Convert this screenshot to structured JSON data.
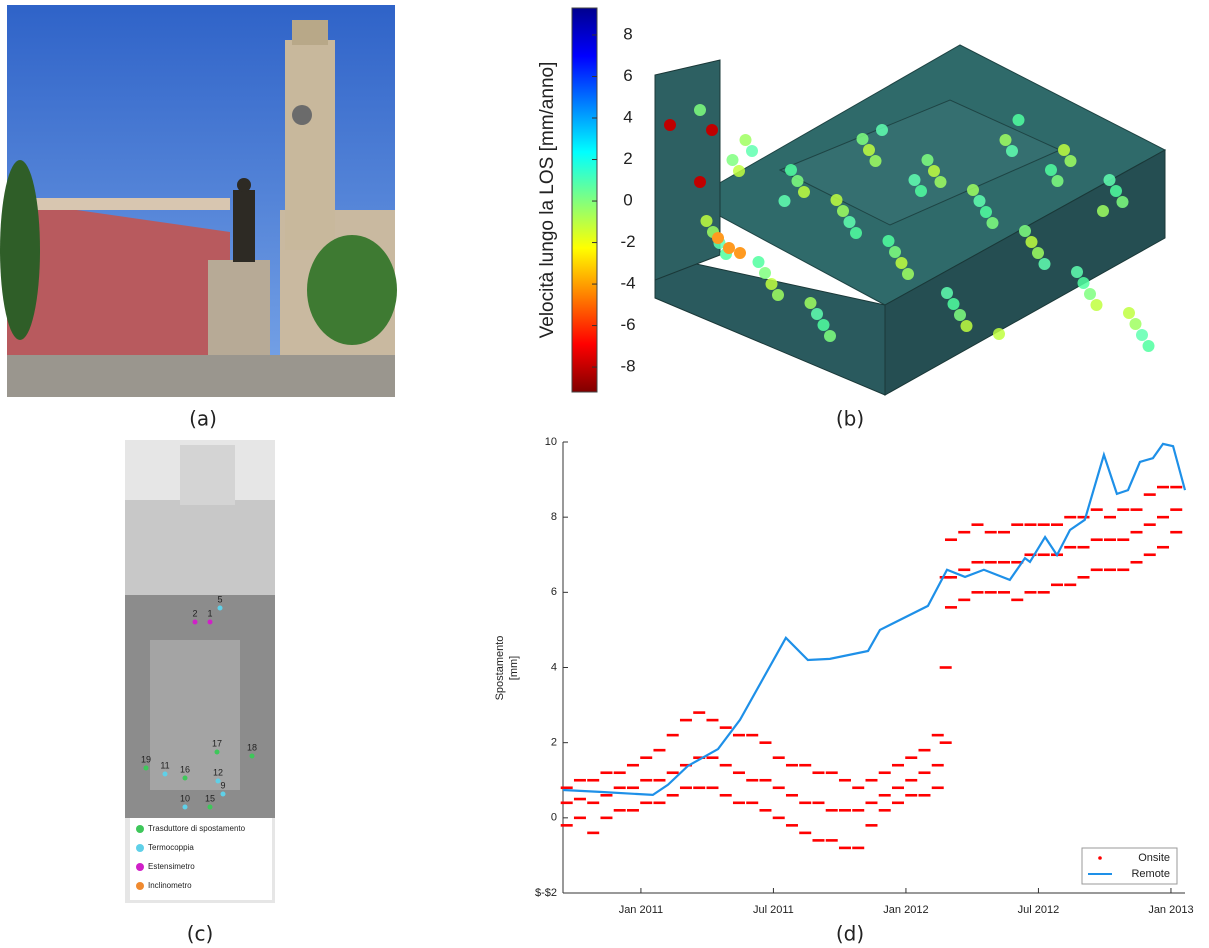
{
  "panel_labels": [
    "(a)",
    "(b)",
    "(c)",
    "(d)"
  ],
  "colorbar": {
    "label": "Velocità lungo la LOS [mm/anno]",
    "lim": [
      -9.2,
      9.3
    ],
    "ticks": [
      8,
      6,
      4,
      2,
      0,
      -2,
      -4,
      -6,
      -8
    ]
  },
  "sensor_diagram": {
    "labels": [
      {
        "text": "19",
        "color": "#3ec75a"
      },
      {
        "text": "11",
        "color": "#5fd0e8"
      },
      {
        "text": "16",
        "color": "#3ec75a"
      },
      {
        "text": "17",
        "color": "#3ec75a"
      },
      {
        "text": "18",
        "color": "#3ec75a"
      },
      {
        "text": "12",
        "color": "#5fd0e8"
      },
      {
        "text": "10",
        "color": "#5fd0e8"
      },
      {
        "text": "15",
        "color": "#3ec75a"
      },
      {
        "text": "9",
        "color": "#5fd0e8"
      },
      {
        "text": "2",
        "color": "#d020c8"
      },
      {
        "text": "1",
        "color": "#d020c8"
      },
      {
        "text": "5",
        "color": "#5fd0e8"
      }
    ],
    "legend": [
      {
        "name": "Trasduttore  di spostamento",
        "color": "#3ec75a"
      },
      {
        "name": "Termocoppia",
        "color": "#5fd0e8"
      },
      {
        "name": "Estensimetro",
        "color": "#d020c8"
      },
      {
        "name": "Inclinometro",
        "color": "#f08a30"
      }
    ]
  },
  "chart_data": {
    "type": "line",
    "ylabel": [
      "Spostamento",
      "[mm]"
    ],
    "xlim": [
      2010.706,
      2013.053
    ],
    "ylim": [
      -2,
      10
    ],
    "xticks": [
      {
        "value": 2011,
        "label": "Jan 2011"
      },
      {
        "value": 2011.5,
        "label": "Jul 2011"
      },
      {
        "value": 2012,
        "label": "Jan 2012"
      },
      {
        "value": 2012.5,
        "label": "Jul 2012"
      },
      {
        "value": 2013,
        "label": "Jan 2013"
      }
    ],
    "yticks": [
      {
        "value": -2,
        "label": "$-$2"
      },
      0,
      2,
      4,
      6,
      8,
      10
    ],
    "grid": false,
    "legend": "lower right",
    "series": [
      {
        "name": "Onsite",
        "color": "#ff0000",
        "mode": "markers",
        "x": [
          2010.72,
          2010.72,
          2010.72,
          2010.77,
          2010.77,
          2010.77,
          2010.82,
          2010.82,
          2010.82,
          2010.87,
          2010.87,
          2010.87,
          2010.92,
          2010.92,
          2010.92,
          2010.97,
          2010.97,
          2010.97,
          2011.02,
          2011.02,
          2011.02,
          2011.07,
          2011.07,
          2011.07,
          2011.12,
          2011.12,
          2011.12,
          2011.17,
          2011.17,
          2011.17,
          2011.22,
          2011.22,
          2011.22,
          2011.27,
          2011.27,
          2011.27,
          2011.32,
          2011.32,
          2011.32,
          2011.37,
          2011.37,
          2011.37,
          2011.42,
          2011.42,
          2011.42,
          2011.47,
          2011.47,
          2011.47,
          2011.52,
          2011.52,
          2011.52,
          2011.57,
          2011.57,
          2011.57,
          2011.62,
          2011.62,
          2011.62,
          2011.67,
          2011.67,
          2011.67,
          2011.72,
          2011.72,
          2011.72,
          2011.77,
          2011.77,
          2011.77,
          2011.82,
          2011.82,
          2011.82,
          2011.87,
          2011.87,
          2011.87,
          2011.92,
          2011.92,
          2011.92,
          2011.97,
          2011.97,
          2011.97,
          2012.02,
          2012.02,
          2012.02,
          2012.07,
          2012.07,
          2012.07,
          2012.12,
          2012.12,
          2012.12,
          2012.15,
          2012.15,
          2012.15,
          2012.17,
          2012.17,
          2012.17,
          2012.22,
          2012.22,
          2012.22,
          2012.27,
          2012.27,
          2012.27,
          2012.32,
          2012.32,
          2012.32,
          2012.37,
          2012.37,
          2012.37,
          2012.42,
          2012.42,
          2012.42,
          2012.47,
          2012.47,
          2012.47,
          2012.52,
          2012.52,
          2012.52,
          2012.57,
          2012.57,
          2012.57,
          2012.62,
          2012.62,
          2012.62,
          2012.67,
          2012.67,
          2012.67,
          2012.72,
          2012.72,
          2012.72,
          2012.77,
          2012.77,
          2012.77,
          2012.82,
          2012.82,
          2012.82,
          2012.87,
          2012.87,
          2012.87,
          2012.92,
          2012.92,
          2012.92,
          2012.97,
          2012.97,
          2012.97,
          2013.02,
          2013.02,
          2013.02
        ],
        "values": [
          -0.2,
          0.4,
          0.8,
          0,
          0.5,
          1.0,
          -0.4,
          0.4,
          1.0,
          0,
          0.6,
          1.2,
          0.2,
          0.8,
          1.2,
          0.2,
          0.8,
          1.4,
          0.4,
          1.0,
          1.6,
          0.4,
          1.0,
          1.8,
          0.6,
          1.2,
          2.2,
          0.8,
          1.4,
          2.6,
          0.8,
          1.6,
          2.8,
          0.8,
          1.6,
          2.6,
          0.6,
          1.4,
          2.4,
          0.4,
          1.2,
          2.2,
          0.4,
          1.0,
          2.2,
          0.2,
          1.0,
          2.0,
          0,
          0.8,
          1.6,
          -0.2,
          0.6,
          1.4,
          -0.4,
          0.4,
          1.4,
          -0.6,
          0.4,
          1.2,
          -0.6,
          0.2,
          1.2,
          -0.8,
          0.2,
          1.0,
          -0.8,
          0.2,
          0.8,
          -0.2,
          0.4,
          1.0,
          0.2,
          0.6,
          1.2,
          0.4,
          0.8,
          1.4,
          0.6,
          1.0,
          1.6,
          0.6,
          1.2,
          1.8,
          0.8,
          1.4,
          2.2,
          2.0,
          4.0,
          6.4,
          5.6,
          6.4,
          7.4,
          5.8,
          6.6,
          7.6,
          6.0,
          6.8,
          7.8,
          6.0,
          6.8,
          7.6,
          6.0,
          6.8,
          7.6,
          5.8,
          6.8,
          7.8,
          6.0,
          7.0,
          7.8,
          6.0,
          7.0,
          7.8,
          6.2,
          7.0,
          7.8,
          6.2,
          7.2,
          8.0,
          6.4,
          7.2,
          8.0,
          6.6,
          7.4,
          8.2,
          6.6,
          7.4,
          8.0,
          6.6,
          7.4,
          8.2,
          6.8,
          7.6,
          8.2,
          7.0,
          7.8,
          8.6,
          7.2,
          8.0,
          8.8,
          7.6,
          8.2,
          8.8
        ]
      },
      {
        "name": "Remote",
        "color": "#1e90e8",
        "mode": "line",
        "x": [
          2010.706,
          2010.845,
          2011.045,
          2011.102,
          2011.177,
          2011.291,
          2011.374,
          2011.547,
          2011.63,
          2011.713,
          2011.857,
          2011.902,
          2012.083,
          2012.155,
          2012.223,
          2012.294,
          2012.392,
          2012.449,
          2012.468,
          2012.525,
          2012.57,
          2012.619,
          2012.675,
          2012.747,
          2012.796,
          2012.838,
          2012.883,
          2012.932,
          2012.97,
          2013.008,
          2013.053
        ],
        "values": [
          0.74,
          0.69,
          0.61,
          0.88,
          1.38,
          1.83,
          2.61,
          4.79,
          4.2,
          4.23,
          4.44,
          5.0,
          5.64,
          6.6,
          6.41,
          6.6,
          6.33,
          6.91,
          6.81,
          7.47,
          6.99,
          7.66,
          7.93,
          9.66,
          8.62,
          8.72,
          9.47,
          9.57,
          9.95,
          9.89,
          8.72
        ]
      }
    ]
  }
}
